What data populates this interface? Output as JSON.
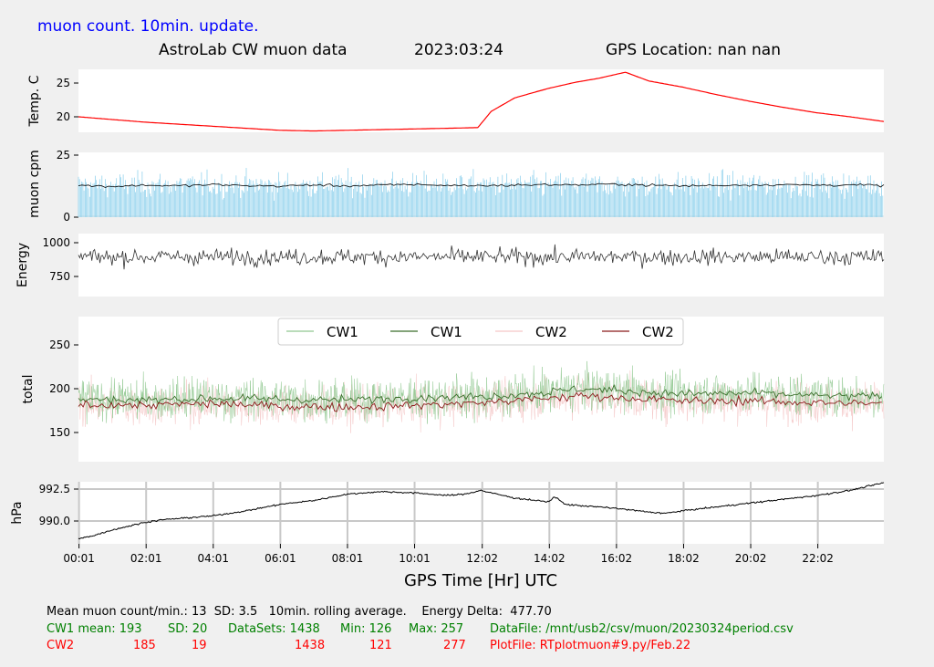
{
  "header": {
    "title": "muon count.  10min. update.",
    "subtitle_left": "AstroLab CW muon data",
    "date": "2023:03:24",
    "gps": "GPS Location: nan   nan"
  },
  "colors": {
    "temp": "#ff0000",
    "muon_bars": "#87ceeb",
    "muon_avg": "#000000",
    "energy": "#333333",
    "cw1_raw": "#90c890",
    "cw1_avg": "#3a6e2a",
    "cw2_raw": "#f5c8c8",
    "cw2_avg": "#8b1a1a",
    "pressure": "#000000",
    "grid": "#c8c8c8"
  },
  "chart_data": [
    {
      "type": "line",
      "panel": "temperature",
      "ylabel": "Temp. C",
      "yticks": [
        "25",
        "20"
      ],
      "ylim": [
        17.5,
        26.5
      ],
      "xlim": [
        0,
        24
      ],
      "x": [
        0,
        1,
        2,
        3,
        4,
        5,
        6,
        7,
        8,
        9,
        10,
        11,
        11.9,
        12.3,
        13,
        14,
        14.8,
        15.5,
        16.3,
        17,
        18,
        19,
        20,
        21,
        22,
        23,
        24
      ],
      "values": [
        20.0,
        19.6,
        19.2,
        18.9,
        18.6,
        18.3,
        18.0,
        17.9,
        18.0,
        18.1,
        18.2,
        18.3,
        18.4,
        20.8,
        22.8,
        24.2,
        25.1,
        25.7,
        26.6,
        25.3,
        24.4,
        23.3,
        22.3,
        21.4,
        20.6,
        20.0,
        19.3
      ]
    },
    {
      "type": "bar+line",
      "panel": "muon",
      "ylabel": "muon cpm",
      "yticks": [
        "25",
        "0"
      ],
      "ylim": [
        0,
        25
      ],
      "series": [
        {
          "kind": "bars",
          "mean": 13,
          "sd": 3.5
        },
        {
          "kind": "rolling_average",
          "x": [
            0,
            1,
            2,
            3,
            4,
            5,
            6,
            7,
            8,
            9,
            10,
            11,
            12,
            13,
            14,
            15,
            16,
            17,
            18,
            19,
            20,
            21,
            22,
            23,
            24
          ],
          "values": [
            12.8,
            12.4,
            12.9,
            12.6,
            13.1,
            12.7,
            12.5,
            13.0,
            12.6,
            12.9,
            13.2,
            12.8,
            12.7,
            12.9,
            13.1,
            13.0,
            13.3,
            12.9,
            12.6,
            12.8,
            13.0,
            13.1,
            12.9,
            13.0,
            12.7
          ]
        }
      ]
    },
    {
      "type": "line",
      "panel": "energy",
      "ylabel": "Energy",
      "yticks": [
        "1000",
        "750"
      ],
      "ylim": [
        600,
        1060
      ],
      "mean": 895,
      "sd": 55,
      "delta": 477.7
    },
    {
      "type": "line",
      "panel": "total",
      "ylabel": "total",
      "yticks": [
        "250",
        "200",
        "150"
      ],
      "ylim": [
        120,
        280
      ],
      "legend": [
        "CW1",
        "CW1",
        "CW2",
        "CW2"
      ],
      "series": [
        {
          "name": "CW1",
          "kind": "raw",
          "mean": 193,
          "sd": 20,
          "min": 126,
          "max": 257
        },
        {
          "name": "CW1",
          "kind": "rolling_average",
          "x": [
            0,
            2,
            4,
            6,
            8,
            10,
            12,
            14,
            15,
            16,
            18,
            20,
            22,
            24
          ],
          "values": [
            188,
            187,
            189,
            188,
            187,
            190,
            191,
            196,
            200,
            198,
            194,
            195,
            192,
            191
          ]
        },
        {
          "name": "CW2",
          "kind": "raw",
          "mean": 185,
          "sd": 19,
          "min": 121,
          "max": 277
        },
        {
          "name": "CW2",
          "kind": "rolling_average",
          "x": [
            0,
            2,
            4,
            6,
            8,
            10,
            12,
            14,
            15,
            16,
            18,
            20,
            22,
            24
          ],
          "values": [
            182,
            181,
            183,
            180,
            179,
            181,
            184,
            189,
            192,
            190,
            186,
            186,
            184,
            183
          ]
        }
      ]
    },
    {
      "type": "line",
      "panel": "pressure",
      "ylabel": "hPa",
      "yticks": [
        "992.5",
        "990.0"
      ],
      "ylim": [
        988.6,
        993.3
      ],
      "x": [
        0,
        0.5,
        1,
        1.5,
        2,
        2.5,
        3,
        4,
        5,
        6,
        7,
        8,
        9,
        10,
        11,
        11.5,
        12,
        12.3,
        13,
        14,
        14.2,
        14.5,
        15,
        16,
        17,
        17.5,
        18,
        19,
        20,
        21,
        22,
        23,
        24
      ],
      "values": [
        988.6,
        988.9,
        989.3,
        989.6,
        989.9,
        990.1,
        990.2,
        990.4,
        990.8,
        991.3,
        991.6,
        992.1,
        992.3,
        992.2,
        992.0,
        992.1,
        992.4,
        992.2,
        991.8,
        991.5,
        991.9,
        991.3,
        991.2,
        991.0,
        990.7,
        990.6,
        990.8,
        991.1,
        991.4,
        991.7,
        992.0,
        992.4,
        993.0
      ]
    }
  ],
  "x_axis": {
    "title": "GPS Time  [Hr] UTC",
    "tick_positions": [
      0.017,
      2.017,
      4.017,
      6.017,
      8.017,
      10.017,
      12.033,
      14.033,
      16.033,
      18.033,
      20.033,
      22.033
    ],
    "tick_labels": [
      "00:01",
      "02:01",
      "04:01",
      "06:01",
      "08:01",
      "10:01",
      "12:02",
      "14:02",
      "16:02",
      "18:02",
      "20:02",
      "22:02"
    ]
  },
  "stats": {
    "line1": "Mean muon count/min.: 13  SD: 3.5   10min. rolling average.    Energy Delta:  477.70",
    "cw1_label": "CW1 mean: 193",
    "cw1_sd": "SD: 20",
    "cw1_datasets": "DataSets: 1438",
    "cw1_min": "Min: 126",
    "cw1_max": "Max: 257",
    "datafile": "DataFile: /mnt/usb2/csv/muon/20230324period.csv",
    "cw2_label": "CW2",
    "cw2_mean": "185",
    "cw2_sd": "19",
    "cw2_datasets": "1438",
    "cw2_min": "121",
    "cw2_max": "277",
    "plotfile": "PlotFile: RTplotmuon#9.py/Feb.22"
  }
}
